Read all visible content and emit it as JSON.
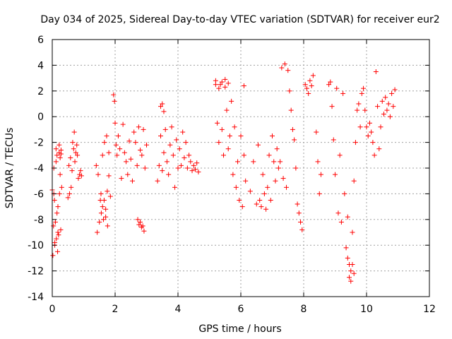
{
  "chart_data": {
    "type": "scatter",
    "title": "Day 034 of 2025, Sidereal Day-to-day VTEC variation (SDTVAR) for receiver eur2",
    "xlabel": "GPS time / hours",
    "ylabel": "SDTVAR / TECUs",
    "xlim": [
      0,
      12
    ],
    "ylim": [
      -14,
      6
    ],
    "xticks": [
      0,
      2,
      4,
      6,
      8,
      10,
      12
    ],
    "yticks": [
      -14,
      -12,
      -10,
      -8,
      -6,
      -4,
      -2,
      0,
      2,
      4,
      6
    ],
    "grid": true,
    "marker": "+",
    "marker_color": "#ff0000",
    "series": [
      {
        "name": "SDTVAR",
        "x": [
          0.0,
          0.02,
          0.04,
          0.05,
          0.07,
          0.08,
          0.1,
          0.12,
          0.13,
          0.15,
          0.17,
          0.18,
          0.2,
          0.22,
          0.23,
          0.25,
          0.27,
          0.28,
          0.3,
          0.05,
          0.08,
          0.12,
          0.15,
          0.18,
          0.22,
          0.25,
          0.28,
          0.5,
          0.53,
          0.55,
          0.58,
          0.6,
          0.63,
          0.65,
          0.68,
          0.7,
          0.72,
          0.75,
          0.78,
          0.8,
          0.83,
          0.87,
          0.9,
          0.93,
          1.4,
          1.43,
          1.46,
          1.5,
          1.53,
          1.56,
          1.6,
          1.63,
          1.66,
          1.7,
          1.73,
          1.76,
          1.8,
          1.55,
          1.6,
          1.65,
          1.7,
          1.75,
          1.8,
          1.85,
          1.95,
          1.98,
          2.0,
          2.03,
          2.06,
          2.1,
          2.15,
          2.2,
          2.25,
          2.3,
          2.35,
          2.4,
          2.45,
          2.5,
          2.55,
          2.6,
          2.65,
          2.7,
          2.75,
          2.8,
          2.85,
          2.9,
          2.95,
          3.0,
          2.72,
          2.76,
          2.8,
          2.84,
          2.88,
          2.92,
          3.35,
          3.4,
          3.45,
          3.5,
          3.55,
          3.6,
          3.65,
          3.7,
          3.75,
          3.8,
          3.85,
          3.9,
          3.95,
          4.0,
          4.05,
          4.1,
          4.15,
          4.2,
          4.25,
          4.3,
          4.35,
          4.4,
          4.45,
          4.5,
          4.55,
          4.6,
          4.65,
          3.45,
          3.5,
          3.55,
          5.2,
          5.25,
          5.3,
          5.35,
          5.4,
          5.45,
          5.5,
          5.55,
          5.6,
          5.65,
          5.7,
          5.75,
          5.8,
          5.85,
          5.9,
          5.95,
          6.0,
          6.05,
          6.1,
          6.15,
          5.2,
          5.3,
          5.4,
          5.5,
          5.6,
          6.1,
          6.3,
          6.4,
          6.5,
          6.55,
          6.6,
          6.65,
          6.7,
          6.75,
          6.8,
          6.85,
          6.9,
          6.95,
          7.0,
          7.05,
          7.1,
          7.15,
          7.2,
          7.25,
          7.3,
          7.35,
          7.4,
          7.45,
          7.5,
          7.55,
          7.6,
          7.65,
          7.7,
          7.75,
          7.8,
          7.85,
          7.9,
          7.95,
          8.05,
          8.1,
          8.15,
          8.2,
          8.25,
          8.3,
          8.4,
          8.45,
          8.5,
          8.55,
          8.8,
          8.85,
          8.9,
          8.95,
          9.0,
          9.05,
          9.1,
          9.15,
          9.2,
          9.25,
          9.3,
          9.35,
          9.4,
          9.45,
          9.5,
          9.55,
          9.6,
          9.65,
          9.7,
          9.75,
          9.8,
          9.85,
          9.9,
          9.95,
          9.4,
          9.45,
          9.5,
          9.55,
          9.6,
          10.0,
          10.05,
          10.1,
          10.15,
          10.2,
          10.25,
          10.3,
          10.35,
          10.4,
          10.45,
          10.5,
          10.55,
          10.6,
          10.65,
          10.7,
          10.75,
          10.8,
          10.85,
          10.9
        ],
        "y": [
          -5.7,
          -10.8,
          -8.5,
          -4.0,
          -6.5,
          -10.0,
          -8.2,
          -2.5,
          -9.5,
          -3.0,
          -10.5,
          -7.0,
          -9.2,
          -2.8,
          -6.0,
          -3.2,
          -8.8,
          -2.6,
          -5.5,
          -6.0,
          -9.8,
          -3.5,
          -7.5,
          -9.0,
          -2.2,
          -4.5,
          -2.9,
          -6.3,
          -3.8,
          -6.0,
          -3.2,
          -5.5,
          -4.2,
          -2.0,
          -2.5,
          -1.2,
          -3.5,
          -2.8,
          -2.2,
          -3.0,
          -4.8,
          -4.5,
          -4.2,
          -4.6,
          -3.8,
          -9.0,
          -4.5,
          -8.2,
          -6.5,
          -7.5,
          -3.0,
          -8.0,
          -2.0,
          -7.2,
          -1.5,
          -8.5,
          -2.8,
          -6.0,
          -7.0,
          -6.5,
          -7.8,
          -5.8,
          -4.6,
          -6.2,
          1.7,
          1.2,
          -0.5,
          -2.2,
          -3.0,
          -1.5,
          -2.5,
          -4.8,
          -0.6,
          -2.8,
          -3.5,
          -4.5,
          -1.9,
          -3.3,
          -5.0,
          -1.2,
          -2.0,
          -3.8,
          -0.8,
          -2.6,
          -3.0,
          -1.0,
          -4.0,
          -2.2,
          -8.0,
          -8.4,
          -8.2,
          -8.6,
          -8.5,
          -8.9,
          -5.0,
          -3.8,
          -1.5,
          -4.2,
          -2.8,
          -1.0,
          -3.5,
          -4.5,
          -2.2,
          -0.8,
          -3.0,
          -5.5,
          -1.8,
          -4.0,
          -2.5,
          -3.8,
          -1.2,
          -3.2,
          -2.0,
          -4.0,
          -3.0,
          -3.5,
          -4.2,
          -3.8,
          -4.1,
          -3.6,
          -4.3,
          0.8,
          1.0,
          0.4,
          2.8,
          -0.5,
          -2.0,
          2.5,
          -1.0,
          -3.0,
          2.9,
          0.5,
          -2.5,
          -1.5,
          1.2,
          -4.5,
          -0.8,
          -5.5,
          -3.5,
          -6.5,
          -1.5,
          -7.0,
          -3.0,
          -5.0,
          2.5,
          2.2,
          2.7,
          2.3,
          2.6,
          2.4,
          -5.8,
          -3.5,
          -6.8,
          -2.2,
          -6.5,
          -7.0,
          -4.5,
          -6.0,
          -7.2,
          -5.5,
          -3.0,
          -6.5,
          -1.5,
          -3.5,
          -5.0,
          -2.5,
          -4.0,
          -3.5,
          3.8,
          -4.8,
          4.1,
          -5.5,
          3.6,
          2.0,
          0.5,
          -1.0,
          -1.8,
          -4.0,
          -6.8,
          -7.5,
          -8.2,
          -8.8,
          2.5,
          2.2,
          1.8,
          2.8,
          2.4,
          3.2,
          -1.2,
          -3.5,
          -6.0,
          -4.5,
          2.5,
          2.7,
          0.8,
          -1.8,
          -4.5,
          2.2,
          -7.5,
          -3.0,
          -8.2,
          1.8,
          -6.0,
          -10.2,
          -7.8,
          -11.5,
          -12.8,
          -9.0,
          -5.0,
          -2.0,
          0.5,
          1.0,
          -0.8,
          1.8,
          2.2,
          0.5,
          -11.0,
          -12.5,
          -12.0,
          -11.5,
          -12.2,
          -0.8,
          -1.5,
          -0.5,
          -1.2,
          -2.0,
          -3.0,
          3.5,
          0.8,
          -2.5,
          -0.8,
          1.2,
          0.2,
          1.5,
          0.5,
          1.0,
          0.0,
          1.8,
          0.8,
          2.1
        ]
      }
    ]
  }
}
